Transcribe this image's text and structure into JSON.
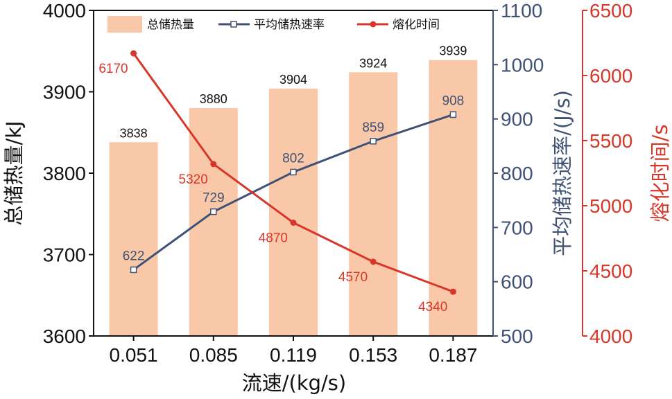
{
  "chart_data": {
    "type": "bar",
    "categories": [
      "0.051",
      "0.085",
      "0.119",
      "0.153",
      "0.187"
    ],
    "xlabel": "流速/(kg/s)",
    "series": [
      {
        "name": "总储热量",
        "type": "bar",
        "axis": "left",
        "values": [
          3838,
          3880,
          3904,
          3924,
          3939
        ],
        "labels": [
          "3838",
          "3880",
          "3904",
          "3924",
          "3939"
        ],
        "color": "#f8c8a8"
      },
      {
        "name": "平均储热速率",
        "type": "line",
        "axis": "right1",
        "values": [
          622,
          729,
          802,
          859,
          908
        ],
        "labels": [
          "622",
          "729",
          "802",
          "859",
          "908"
        ],
        "color": "#3f5275"
      },
      {
        "name": "熔化时间",
        "type": "line",
        "axis": "right2",
        "values": [
          6170,
          5320,
          4870,
          4570,
          4340
        ],
        "labels": [
          "6170",
          "5320",
          "4870",
          "4570",
          "4340"
        ],
        "color": "#d9362a"
      }
    ],
    "axes": {
      "left": {
        "label": "总储热量/kJ",
        "range": [
          3600,
          4000
        ],
        "ticks": [
          "3600",
          "3700",
          "3800",
          "3900",
          "4000"
        ],
        "color": "#111111"
      },
      "right1": {
        "label": "平均储热速率/(J/s)",
        "range": [
          500,
          1100
        ],
        "ticks": [
          "500",
          "600",
          "700",
          "800",
          "900",
          "1000",
          "1100"
        ],
        "color": "#3f5275"
      },
      "right2": {
        "label": "熔化时间/s",
        "range": [
          4000,
          6500
        ],
        "ticks": [
          "4000",
          "4500",
          "5000",
          "5500",
          "6000",
          "6500"
        ],
        "color": "#d9362a"
      }
    },
    "legend": {
      "placement": "top"
    },
    "grid": false
  }
}
